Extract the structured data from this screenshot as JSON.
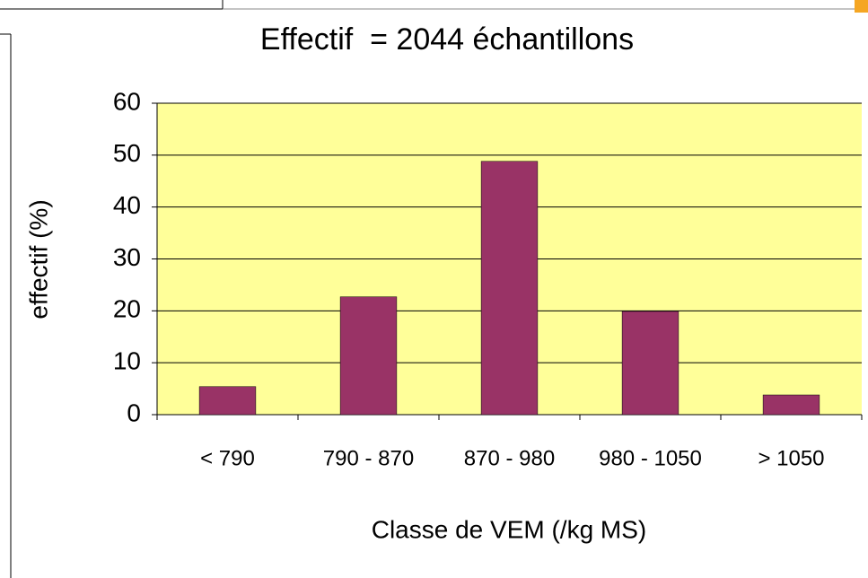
{
  "chart_data": {
    "type": "bar",
    "title": "Effectif  = 2044 échantillons",
    "ylabel": "effectif (%)",
    "xlabel": "Classe de VEM (/kg MS)",
    "categories": [
      "< 790",
      "790 - 870",
      "870 - 980",
      "980 - 1050",
      "> 1050"
    ],
    "values": [
      5.4,
      22.7,
      48.8,
      19.9,
      3.8
    ],
    "color": "#993366",
    "ylim": [
      0,
      60
    ],
    "yticks": [
      0,
      10,
      20,
      30,
      40,
      50,
      60
    ],
    "grid": true
  }
}
